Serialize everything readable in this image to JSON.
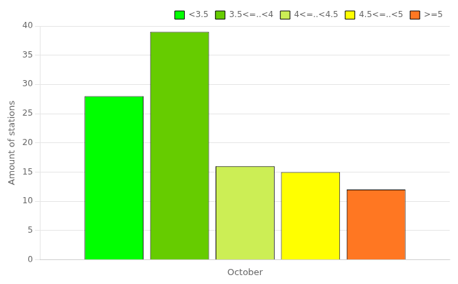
{
  "chart_data": {
    "type": "bar",
    "categories": [
      "October"
    ],
    "series": [
      {
        "name": "<3.5",
        "color": "#00ff00",
        "values": [
          28
        ]
      },
      {
        "name": "3.5<=..<4",
        "color": "#66cc00",
        "values": [
          39
        ]
      },
      {
        "name": "4<=..<4.5",
        "color": "#ccee55",
        "values": [
          16
        ]
      },
      {
        "name": "4.5<=..<5",
        "color": "#ffff00",
        "values": [
          15
        ]
      },
      {
        "name": ">=5",
        "color": "#ff7722",
        "values": [
          12
        ]
      }
    ],
    "ylabel": "Amount of stations",
    "ylim": [
      0,
      40
    ],
    "yticks": [
      0,
      5,
      10,
      15,
      20,
      25,
      30,
      35,
      40
    ],
    "grid": true,
    "legend": "upper right"
  }
}
